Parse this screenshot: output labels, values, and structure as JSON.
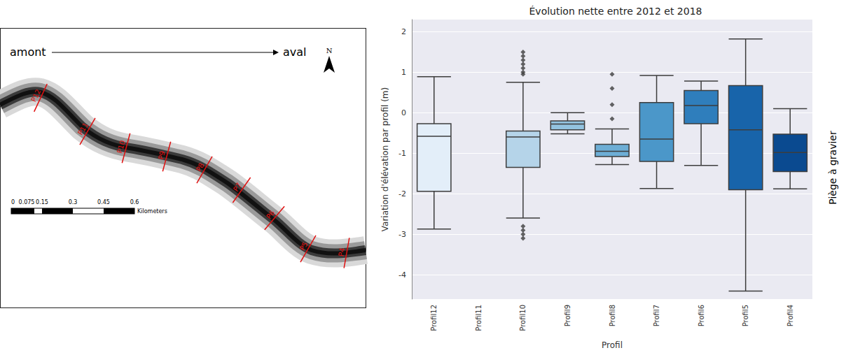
{
  "chart_data": {
    "type": "boxplot",
    "title": "Évolution nette entre 2012 et 2018",
    "x_label": "Profil",
    "y_label": "Variation d'élévation par profil (m)",
    "categories": [
      "Profil12",
      "Profil11",
      "Profil10",
      "Profil9",
      "Profil8",
      "Profil7",
      "Profil6",
      "Profil5",
      "Profil4"
    ],
    "boxes": [
      [
        -2.87,
        -1.94,
        -0.58,
        -0.27,
        0.89
      ],
      null,
      [
        -2.6,
        -1.35,
        -0.6,
        -0.45,
        0.75
      ],
      [
        -0.52,
        -0.42,
        -0.28,
        -0.2,
        0.0
      ],
      [
        -1.28,
        -1.08,
        -0.95,
        -0.78,
        -0.4
      ],
      [
        -1.87,
        -1.2,
        -0.65,
        0.25,
        0.92
      ],
      [
        -1.3,
        -0.27,
        0.18,
        0.55,
        0.78
      ],
      [
        -4.4,
        -1.9,
        -0.42,
        0.67,
        1.82
      ],
      [
        -1.88,
        -1.45,
        -0.98,
        -0.53,
        0.1
      ]
    ],
    "outliers": [
      [],
      [],
      [
        1.5,
        1.4,
        1.3,
        1.2,
        1.1,
        1.0,
        0.95,
        -2.8,
        -2.9,
        -3.0,
        -3.1
      ],
      [],
      [
        0.95,
        0.6,
        0.2,
        -0.15
      ],
      [],
      [],
      [],
      []
    ],
    "colors": [
      "#e3eef9",
      "#cfe1f2",
      "#b5d4e9",
      "#93c3df",
      "#6daed5",
      "#4b97c9",
      "#2f7ebc",
      "#1864aa",
      "#0a4a90"
    ],
    "marker": "diamond",
    "ylim": [
      -4.6,
      2.3
    ],
    "yticks": [
      -4,
      -3,
      -2,
      -1,
      0,
      1,
      2
    ],
    "grid": true,
    "annotation": "Piège à gravier"
  },
  "map": {
    "direction": {
      "from": "amont",
      "to": "aval"
    },
    "north": "N",
    "scale_bar": {
      "labels": [
        "0",
        "0.075",
        "0.15",
        "0.3",
        "0.45",
        "0.6"
      ],
      "unit": "Kilometers"
    },
    "profiles": [
      "P12",
      "P11",
      "P10",
      "P9",
      "P8",
      "P7",
      "P6",
      "P5",
      "P4"
    ]
  }
}
